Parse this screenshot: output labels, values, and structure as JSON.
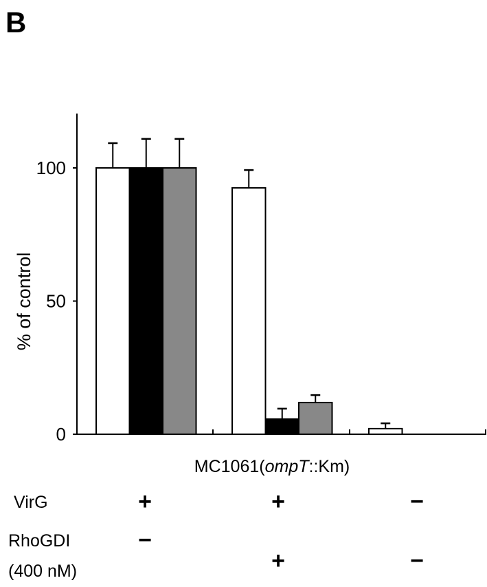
{
  "panel_label": "B",
  "chart_data": {
    "type": "bar",
    "title": "",
    "xlabel": "MC1061(ompT::Km)",
    "xlabel_parts": [
      "MC1061(",
      "ompT",
      "::Km)"
    ],
    "ylabel": "% of control",
    "ylim": [
      0,
      120
    ],
    "yticks": [
      0,
      50,
      100
    ],
    "ytick_labels": [
      "0",
      "50",
      "100"
    ],
    "categories": [
      "group1",
      "group2",
      "group3"
    ],
    "series": [
      {
        "name": "white",
        "color": "#ffffff",
        "values": [
          100,
          92.5,
          2.1
        ],
        "errors": [
          9.3,
          6.7,
          2.0
        ]
      },
      {
        "name": "black",
        "color": "#000000",
        "values": [
          100,
          5.7,
          0
        ],
        "errors": [
          10.9,
          3.9,
          0
        ]
      },
      {
        "name": "gray",
        "color": "#888888",
        "values": [
          100,
          11.9,
          0
        ],
        "errors": [
          10.9,
          2.8,
          0
        ]
      }
    ],
    "conditions": [
      {
        "label": "VirG",
        "values": [
          "+",
          "+",
          "−"
        ]
      },
      {
        "label_lines": [
          "RhoGDI",
          "(400 nM)"
        ],
        "values": [
          "−",
          "+",
          "−"
        ]
      }
    ]
  }
}
